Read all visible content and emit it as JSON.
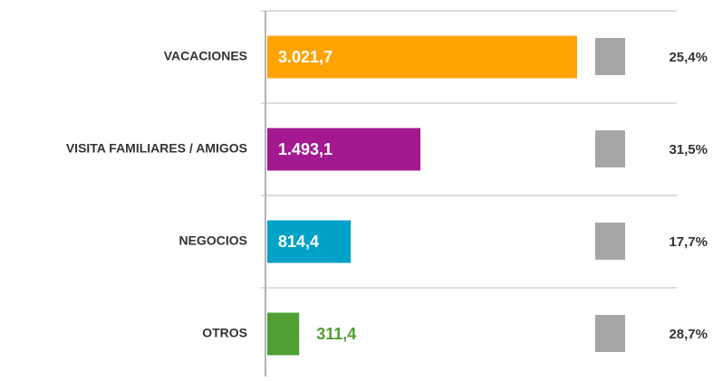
{
  "chart_data": {
    "type": "bar",
    "orientation": "horizontal",
    "categories": [
      "VACACIONES",
      "VISITA FAMILIARES / AMIGOS",
      "NEGOCIOS",
      "OTROS"
    ],
    "values": [
      3021.7,
      1493.1,
      814.4,
      311.4
    ],
    "value_labels": [
      "3.021,7",
      "1.493,1",
      "814,4",
      "311,4"
    ],
    "colors": [
      "#ffa300",
      "#a3198f",
      "#00a2c7",
      "#4f9f32"
    ],
    "share_labels": [
      "25,4%",
      "31,5%",
      "17,7%",
      "28,7%"
    ]
  }
}
